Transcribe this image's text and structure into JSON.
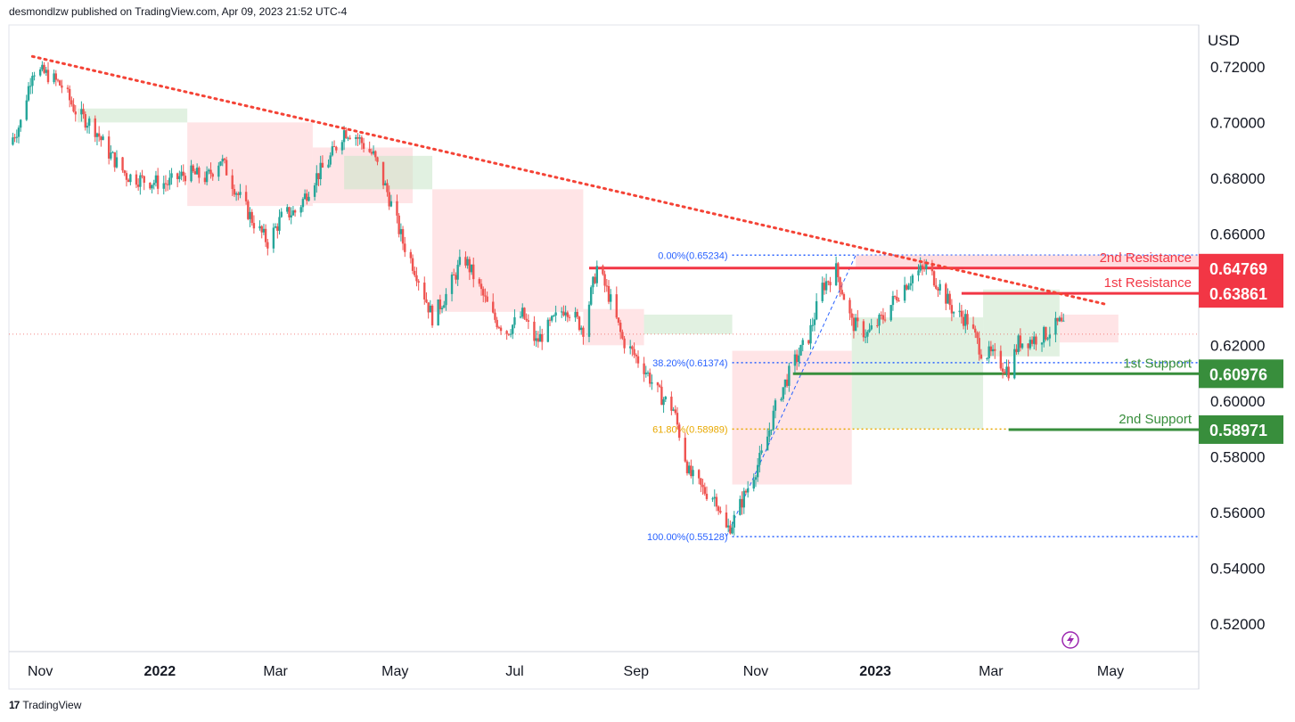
{
  "header": {
    "publisher": "desmondlzw published on TradingView.com, Apr 09, 2023 21:52 UTC-4"
  },
  "footer": {
    "brand": "TradingView",
    "logo_glyph": "17"
  },
  "colors": {
    "bull": "#26a69a",
    "bear": "#ef5350",
    "trend": "#f44336",
    "resistance": "#f23645",
    "support": "#388e3c",
    "fib_blue": "#2962ff",
    "fib_gold": "#e8a800",
    "cloud_bear": "#ffcdd2",
    "cloud_bull": "#c8e6c9",
    "current_line": "#ef5350",
    "grid": "#e0e3eb"
  },
  "chart_data": {
    "type": "candlestick",
    "symbol_currency": "USD",
    "y_axis": {
      "unit": "USD",
      "range": [
        0.51,
        0.735
      ],
      "ticks": [
        "0.72000",
        "0.70000",
        "0.68000",
        "0.66000",
        "0.64000",
        "0.62000",
        "0.60000",
        "0.58000",
        "0.56000",
        "0.54000",
        "0.52000"
      ]
    },
    "x_axis": {
      "range": [
        "2021-10-16",
        "2023-06-15"
      ],
      "ticks": [
        {
          "label": "Nov",
          "date": "2021-11-01",
          "bold": false
        },
        {
          "label": "2022",
          "date": "2022-01-01",
          "bold": true
        },
        {
          "label": "Mar",
          "date": "2022-03-01",
          "bold": false
        },
        {
          "label": "May",
          "date": "2022-05-01",
          "bold": false
        },
        {
          "label": "Jul",
          "date": "2022-07-01",
          "bold": false
        },
        {
          "label": "Sep",
          "date": "2022-09-01",
          "bold": false
        },
        {
          "label": "Nov",
          "date": "2022-11-01",
          "bold": false
        },
        {
          "label": "2023",
          "date": "2023-01-01",
          "bold": true
        },
        {
          "label": "Mar",
          "date": "2023-03-01",
          "bold": false
        },
        {
          "label": "May",
          "date": "2023-05-01",
          "bold": false
        }
      ]
    },
    "price_path": [
      [
        "2021-10-16",
        0.692
      ],
      [
        "2021-10-22",
        0.7
      ],
      [
        "2021-10-28",
        0.719
      ],
      [
        "2021-11-05",
        0.717
      ],
      [
        "2021-11-12",
        0.713
      ],
      [
        "2021-11-20",
        0.703
      ],
      [
        "2021-11-28",
        0.699
      ],
      [
        "2021-12-05",
        0.69
      ],
      [
        "2021-12-15",
        0.681
      ],
      [
        "2021-12-25",
        0.679
      ],
      [
        "2022-01-05",
        0.678
      ],
      [
        "2022-01-15",
        0.682
      ],
      [
        "2022-01-25",
        0.68
      ],
      [
        "2022-02-01",
        0.687
      ],
      [
        "2022-02-10",
        0.674
      ],
      [
        "2022-02-18",
        0.664
      ],
      [
        "2022-02-25",
        0.657
      ],
      [
        "2022-03-05",
        0.667
      ],
      [
        "2022-03-12",
        0.668
      ],
      [
        "2022-03-20",
        0.679
      ],
      [
        "2022-03-28",
        0.686
      ],
      [
        "2022-04-05",
        0.697
      ],
      [
        "2022-04-10",
        0.696
      ],
      [
        "2022-04-20",
        0.688
      ],
      [
        "2022-04-27",
        0.675
      ],
      [
        "2022-05-05",
        0.657
      ],
      [
        "2022-05-12",
        0.646
      ],
      [
        "2022-05-20",
        0.63
      ],
      [
        "2022-05-27",
        0.638
      ],
      [
        "2022-06-05",
        0.652
      ],
      [
        "2022-06-12",
        0.642
      ],
      [
        "2022-06-20",
        0.63
      ],
      [
        "2022-06-27",
        0.625
      ],
      [
        "2022-07-05",
        0.631
      ],
      [
        "2022-07-12",
        0.621
      ],
      [
        "2022-07-20",
        0.628
      ],
      [
        "2022-07-27",
        0.634
      ],
      [
        "2022-08-05",
        0.626
      ],
      [
        "2022-08-12",
        0.648
      ],
      [
        "2022-08-18",
        0.638
      ],
      [
        "2022-08-25",
        0.622
      ],
      [
        "2022-09-05",
        0.612
      ],
      [
        "2022-09-12",
        0.603
      ],
      [
        "2022-09-20",
        0.597
      ],
      [
        "2022-09-28",
        0.574
      ],
      [
        "2022-10-05",
        0.568
      ],
      [
        "2022-10-12",
        0.565
      ],
      [
        "2022-10-16",
        0.553
      ],
      [
        "2022-10-20",
        0.556
      ],
      [
        "2022-10-28",
        0.569
      ],
      [
        "2022-11-05",
        0.582
      ],
      [
        "2022-11-12",
        0.6
      ],
      [
        "2022-11-20",
        0.613
      ],
      [
        "2022-11-28",
        0.623
      ],
      [
        "2022-12-05",
        0.641
      ],
      [
        "2022-12-12",
        0.647
      ],
      [
        "2022-12-20",
        0.628
      ],
      [
        "2022-12-28",
        0.624
      ],
      [
        "2023-01-05",
        0.63
      ],
      [
        "2023-01-12",
        0.638
      ],
      [
        "2023-01-20",
        0.645
      ],
      [
        "2023-01-27",
        0.648
      ],
      [
        "2023-02-03",
        0.641
      ],
      [
        "2023-02-10",
        0.632
      ],
      [
        "2023-02-17",
        0.629
      ],
      [
        "2023-02-24",
        0.618
      ],
      [
        "2023-03-02",
        0.616
      ],
      [
        "2023-03-10",
        0.611
      ],
      [
        "2023-03-15",
        0.621
      ],
      [
        "2023-03-22",
        0.622
      ],
      [
        "2023-03-29",
        0.624
      ],
      [
        "2023-04-05",
        0.628
      ],
      [
        "2023-04-09",
        0.624
      ]
    ],
    "trendline": {
      "style": "dotted",
      "start": [
        "2021-10-28",
        0.7237
      ],
      "end": [
        "2023-04-28",
        0.6348
      ]
    },
    "current_price_line": 0.624,
    "ichimoku_cloud": [
      {
        "from": "2021-11-20",
        "to": "2022-01-15",
        "top": 0.705,
        "bottom": 0.7,
        "kind": "bull"
      },
      {
        "from": "2022-01-15",
        "to": "2022-03-20",
        "top": 0.7,
        "bottom": 0.67,
        "kind": "bear"
      },
      {
        "from": "2022-03-20",
        "to": "2022-05-10",
        "top": 0.691,
        "bottom": 0.671,
        "kind": "bear"
      },
      {
        "from": "2022-04-05",
        "to": "2022-05-20",
        "top": 0.688,
        "bottom": 0.676,
        "kind": "bull"
      },
      {
        "from": "2022-05-20",
        "to": "2022-08-05",
        "top": 0.676,
        "bottom": 0.632,
        "kind": "bear"
      },
      {
        "from": "2022-08-05",
        "to": "2022-09-05",
        "top": 0.633,
        "bottom": 0.62,
        "kind": "bear"
      },
      {
        "from": "2022-09-05",
        "to": "2022-10-20",
        "top": 0.624,
        "bottom": 0.631,
        "kind": "bull"
      },
      {
        "from": "2022-10-20",
        "to": "2022-12-20",
        "top": 0.618,
        "bottom": 0.57,
        "kind": "bear"
      },
      {
        "from": "2022-12-20",
        "to": "2023-02-25",
        "top": 0.63,
        "bottom": 0.59,
        "kind": "bull"
      },
      {
        "from": "2023-02-25",
        "to": "2023-04-05",
        "top": 0.64,
        "bottom": 0.616,
        "kind": "bull"
      },
      {
        "from": "2023-04-05",
        "to": "2023-05-05",
        "top": 0.631,
        "bottom": 0.621,
        "kind": "bear"
      }
    ],
    "fibonacci": {
      "anchor_from": [
        "2022-10-17",
        0.55128
      ],
      "anchor_to": [
        "2022-12-22",
        0.65234
      ],
      "levels": [
        {
          "label": "0.00%(0.65234)",
          "price": 0.65234,
          "color": "fib_blue"
        },
        {
          "label": "38.20%(0.61374)",
          "price": 0.61374,
          "color": "fib_blue"
        },
        {
          "label": "61.80%(0.58989)",
          "price": 0.58989,
          "color": "fib_gold"
        },
        {
          "label": "100.00%(0.55128)",
          "price": 0.55128,
          "color": "fib_blue"
        }
      ],
      "line_from": "2022-10-20",
      "line_to": "2023-06-15"
    },
    "levels": [
      {
        "name": "2nd Resistance",
        "price": 0.64769,
        "badge": "0.64769",
        "kind": "resistance",
        "from": "2022-08-08",
        "zone_top": 0.6523,
        "zone_from": "2022-12-22"
      },
      {
        "name": "1st Resistance",
        "price": 0.63861,
        "badge": "0.63861",
        "kind": "resistance",
        "from": "2023-02-14"
      },
      {
        "name": "1st Support",
        "price": 0.60976,
        "badge": "0.60976",
        "kind": "support",
        "from": "2022-11-20"
      },
      {
        "name": "2nd Support",
        "price": 0.58971,
        "badge": "0.58971",
        "kind": "support",
        "from": "2023-03-10"
      }
    ]
  }
}
